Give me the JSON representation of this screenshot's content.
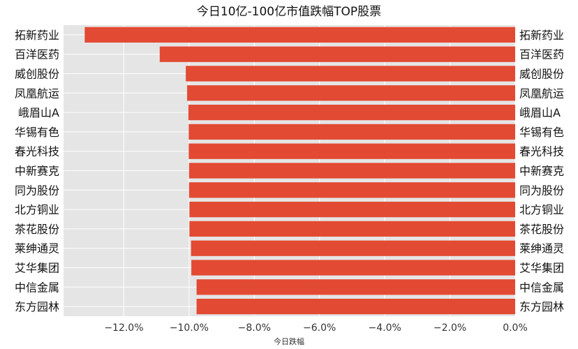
{
  "chart_data": {
    "type": "bar",
    "orientation": "horizontal",
    "title": "今日10亿-100亿市值跌幅TOP股票",
    "xlabel": "今日跌幅",
    "ylabel": "",
    "categories": [
      "拓新药业",
      "百洋医药",
      "威创股份",
      "凤凰航运",
      "峨眉山A",
      "华锡有色",
      "春光科技",
      "中新赛克",
      "同为股份",
      "北方铜业",
      "茶花股份",
      "莱绅通灵",
      "艾华集团",
      "中信金属",
      "东方园林"
    ],
    "values": [
      -13.2,
      -10.9,
      -10.1,
      -10.06,
      -10.02,
      -10.01,
      -10.01,
      -10.0,
      -10.0,
      -9.99,
      -9.99,
      -9.94,
      -9.93,
      -9.77,
      -9.77
    ],
    "xlim": [
      -13.85,
      0
    ],
    "xticks": [
      -12,
      -10,
      -8,
      -6,
      -4,
      -2,
      0
    ],
    "xtick_labels": [
      "−12.0%",
      "−10.0%",
      "−8.0%",
      "−6.0%",
      "−4.0%",
      "−2.0%",
      "0.0%"
    ],
    "grid": true,
    "bar_color": "#E24A33",
    "background_color": "#E5E5E5",
    "grid_color": "#FFFFFF",
    "labels_on_both_sides": true
  }
}
